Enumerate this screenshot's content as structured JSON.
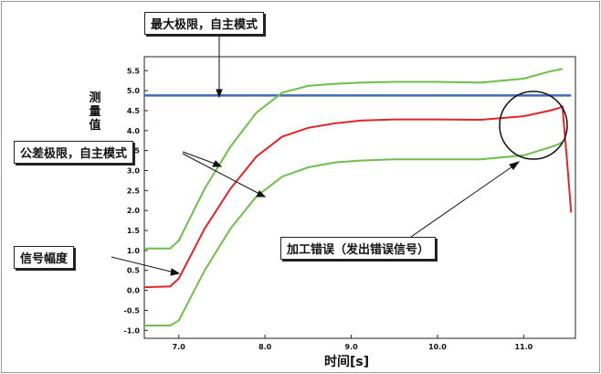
{
  "chart_data": {
    "type": "line",
    "xlabel": "时间[s]",
    "ylabel": "测量值",
    "x_ticks": [
      "7.0",
      "8.0",
      "9.0",
      "10.0",
      "11.0"
    ],
    "y_ticks": [
      "5.5",
      "5.0",
      "4.5",
      "4.0",
      "3.5",
      "3.0",
      "2.5",
      "2.0",
      "1.5",
      "1.0",
      "0.5",
      "0.0",
      "-0.5",
      "-1.0"
    ],
    "xlim": [
      6.6,
      11.6
    ],
    "ylim": [
      -1.2,
      5.85
    ],
    "grid": false,
    "colors": {
      "upper": "#6ebf4a",
      "signal": "#e0262b",
      "lower": "#6ebf4a",
      "max_limit": "#3f6bb5"
    },
    "x": [
      6.6,
      6.9,
      7.0,
      7.3,
      7.6,
      7.9,
      8.2,
      8.5,
      8.8,
      9.1,
      9.5,
      10.0,
      10.5,
      11.0,
      11.3,
      11.4,
      11.45,
      11.5,
      11.55
    ],
    "series": [
      {
        "key": "upper",
        "values": [
          1.05,
          1.05,
          1.25,
          2.55,
          3.6,
          4.45,
          4.95,
          5.12,
          5.17,
          5.2,
          5.22,
          5.22,
          5.2,
          5.3,
          5.48,
          5.52,
          5.55,
          null,
          null
        ]
      },
      {
        "key": "signal",
        "values": [
          0.08,
          0.1,
          0.3,
          1.55,
          2.55,
          3.35,
          3.85,
          4.07,
          4.18,
          4.25,
          4.28,
          4.28,
          4.27,
          4.36,
          4.5,
          4.56,
          4.6,
          3.3,
          1.95
        ]
      },
      {
        "key": "lower",
        "values": [
          -0.88,
          -0.88,
          -0.75,
          0.5,
          1.55,
          2.35,
          2.85,
          3.08,
          3.2,
          3.25,
          3.28,
          3.28,
          3.28,
          3.38,
          3.58,
          3.65,
          3.72,
          null,
          null
        ]
      }
    ],
    "max_limit_y": 4.88
  },
  "callouts": {
    "max_limit": "最大极限，自主模式",
    "tolerance": "公差极限，自主模式",
    "signal": "信号幅度",
    "error": "加工错误（发出错误信号）"
  }
}
